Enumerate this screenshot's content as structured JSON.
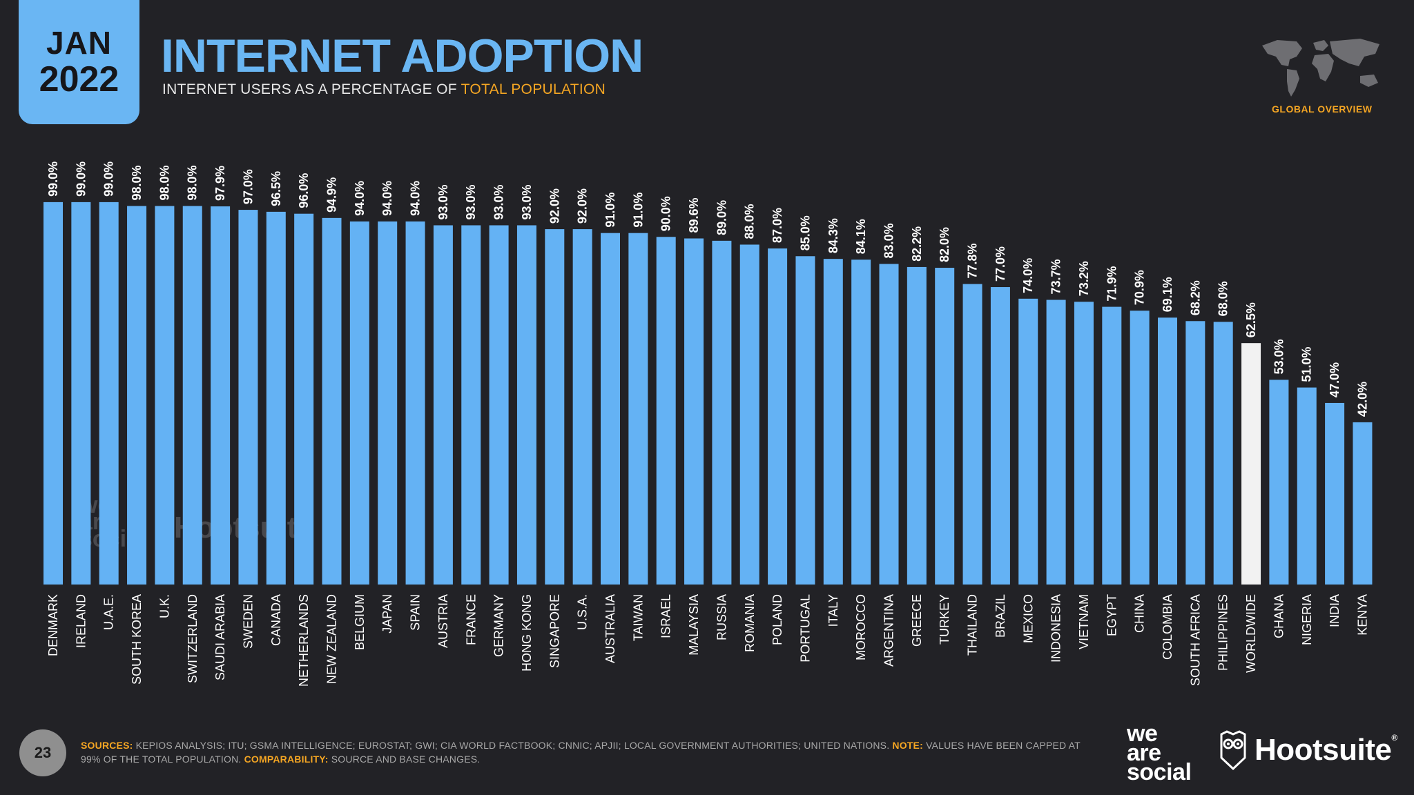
{
  "header": {
    "month": "JAN",
    "year": "2022",
    "title": "INTERNET ADOPTION",
    "subtitle_prefix": "INTERNET USERS AS A PERCENTAGE OF",
    "subtitle_highlight": "TOTAL POPULATION",
    "section_label": "GLOBAL OVERVIEW"
  },
  "colors": {
    "background": "#222226",
    "bar": "#64b2f4",
    "bar_highlight": "#f2f2f2",
    "accent": "#f5a623",
    "text": "#ffffff"
  },
  "icons": {
    "world_map": "world-map-icon",
    "owl": "owl-icon"
  },
  "chart_data": {
    "type": "bar",
    "title": "INTERNET ADOPTION",
    "subtitle": "INTERNET USERS AS A PERCENTAGE OF TOTAL POPULATION",
    "xlabel": "",
    "ylabel": "",
    "ylim": [
      0,
      100
    ],
    "grid": false,
    "highlight": "WORLDWIDE",
    "categories": [
      "DENMARK",
      "IRELAND",
      "U.A.E.",
      "SOUTH KOREA",
      "U.K.",
      "SWITZERLAND",
      "SAUDI ARABIA",
      "SWEDEN",
      "CANADA",
      "NETHERLANDS",
      "NEW ZEALAND",
      "BELGIUM",
      "JAPAN",
      "SPAIN",
      "AUSTRIA",
      "FRANCE",
      "GERMANY",
      "HONG KONG",
      "SINGAPORE",
      "U.S.A.",
      "AUSTRALIA",
      "TAIWAN",
      "ISRAEL",
      "MALAYSIA",
      "RUSSIA",
      "ROMANIA",
      "POLAND",
      "PORTUGAL",
      "ITALY",
      "MOROCCO",
      "ARGENTINA",
      "GREECE",
      "TURKEY",
      "THAILAND",
      "BRAZIL",
      "MEXICO",
      "INDONESIA",
      "VIETNAM",
      "EGYPT",
      "CHINA",
      "COLOMBIA",
      "SOUTH AFRICA",
      "PHILIPPINES",
      "WORLDWIDE",
      "GHANA",
      "NIGERIA",
      "INDIA",
      "KENYA"
    ],
    "values": [
      99.0,
      99.0,
      99.0,
      98.0,
      98.0,
      98.0,
      97.9,
      97.0,
      96.5,
      96.0,
      94.9,
      94.0,
      94.0,
      94.0,
      93.0,
      93.0,
      93.0,
      93.0,
      92.0,
      92.0,
      91.0,
      91.0,
      90.0,
      89.6,
      89.0,
      88.0,
      87.0,
      85.0,
      84.3,
      84.1,
      83.0,
      82.2,
      82.0,
      77.8,
      77.0,
      74.0,
      73.7,
      73.2,
      71.9,
      70.9,
      69.1,
      68.2,
      68.0,
      62.5,
      53.0,
      51.0,
      47.0,
      42.0
    ],
    "value_suffix": "%"
  },
  "watermark": {
    "brand_a": "we are social",
    "brand_b": "Hootsuite"
  },
  "footer": {
    "page_number": "23",
    "sources_label": "SOURCES:",
    "sources_text": "KEPIOS ANALYSIS; ITU; GSMA INTELLIGENCE; EUROSTAT; GWI; CIA WORLD FACTBOOK; CNNIC; APJII; LOCAL GOVERNMENT AUTHORITIES; UNITED NATIONS.",
    "note_label": "NOTE:",
    "note_text": "VALUES HAVE BEEN CAPPED AT 99% OF THE TOTAL POPULATION.",
    "comparability_label": "COMPARABILITY:",
    "comparability_text": "SOURCE AND BASE CHANGES.",
    "logo_was_1": "we",
    "logo_was_2": "are",
    "logo_was_3": "social",
    "logo_hootsuite": "Hootsuite",
    "logo_reg": "®"
  }
}
